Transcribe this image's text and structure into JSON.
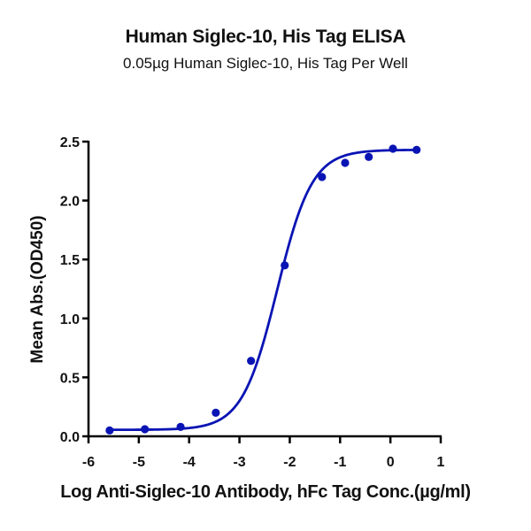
{
  "chart_data": {
    "type": "scatter",
    "title": "Human Siglec-10, His Tag ELISA",
    "subtitle": "0.05µg Human Siglec-10, His Tag Per Well",
    "xlabel": "Log Anti-Siglec-10 Antibody, hFc Tag Conc.(µg/ml)",
    "ylabel": "Mean Abs.(OD450)",
    "xlim": [
      -6,
      1
    ],
    "ylim": [
      0,
      2.5
    ],
    "x_ticks": [
      "-6",
      "-5",
      "-4",
      "-3",
      "-2",
      "-1",
      "0",
      "1"
    ],
    "y_ticks": [
      "0.0",
      "0.5",
      "1.0",
      "1.5",
      "2.0",
      "2.5"
    ],
    "grid": false,
    "legend": null,
    "series": [
      {
        "name": "Human Siglec-10, His Tag",
        "color": "#0a14b4",
        "marker": "circle",
        "fit": "4-parameter logistic curve",
        "x": [
          -5.58,
          -4.88,
          -4.17,
          -3.47,
          -2.77,
          -2.1,
          -1.36,
          -0.9,
          -0.43,
          0.05,
          0.52
        ],
        "y": [
          0.05,
          0.06,
          0.08,
          0.2,
          0.64,
          1.45,
          2.2,
          2.32,
          2.37,
          2.44,
          2.43
        ]
      }
    ],
    "fit_params": {
      "bottom": 0.055,
      "top": 2.43,
      "logEC50": -2.25,
      "hill": 1.25
    }
  }
}
